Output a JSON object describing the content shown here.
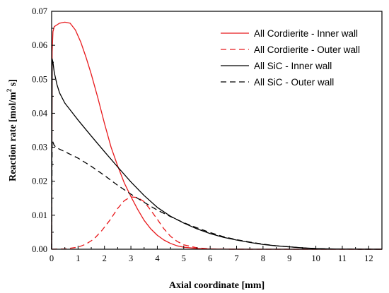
{
  "chart_data": {
    "type": "line",
    "title": "",
    "xlabel": "Axial coordinate [mm]",
    "ylabel_parts": {
      "main": "Reaction rate [mol/m",
      "sup": "2",
      "tail": " s]"
    },
    "xlim": [
      0,
      12.5
    ],
    "ylim": [
      0,
      0.07
    ],
    "xticks": [
      "0",
      "1",
      "2",
      "3",
      "4",
      "5",
      "6",
      "7",
      "8",
      "9",
      "10",
      "11",
      "12"
    ],
    "yticks": [
      "0.00",
      "0.01",
      "0.02",
      "0.03",
      "0.04",
      "0.05",
      "0.06",
      "0.07"
    ],
    "grid": false,
    "legend_position": "top-right",
    "series": [
      {
        "name": "All Cordierite - Inner wall",
        "color": "#e8191c",
        "dash": "solid",
        "x": [
          0,
          0.02,
          0.05,
          0.1,
          0.2,
          0.3,
          0.5,
          0.7,
          0.9,
          1.1,
          1.3,
          1.5,
          1.75,
          2.0,
          2.25,
          2.5,
          2.75,
          3.0,
          3.25,
          3.5,
          3.75,
          4.0,
          4.25,
          4.5,
          4.75,
          5.0,
          5.5,
          6.0,
          6.5,
          7.0,
          7.5,
          8.0,
          12.5
        ],
        "y": [
          0,
          0.058,
          0.064,
          0.0655,
          0.066,
          0.0665,
          0.0668,
          0.0665,
          0.0645,
          0.061,
          0.0565,
          0.0515,
          0.0445,
          0.037,
          0.03,
          0.0245,
          0.0195,
          0.0155,
          0.0118,
          0.0085,
          0.006,
          0.0041,
          0.0027,
          0.0017,
          0.001,
          0.0006,
          0.00022,
          8e-05,
          3e-05,
          1e-05,
          0,
          0,
          0
        ]
      },
      {
        "name": "All Cordierite - Outer wall",
        "color": "#e8191c",
        "dash": "dashed",
        "x": [
          0,
          0.5,
          1.0,
          1.3,
          1.6,
          1.9,
          2.2,
          2.5,
          2.75,
          3.0,
          3.25,
          3.5,
          3.75,
          4.0,
          4.25,
          4.5,
          4.75,
          5.0,
          5.5,
          6.0,
          6.5,
          7.0,
          12.5
        ],
        "y": [
          0,
          0.0001,
          0.0006,
          0.0015,
          0.003,
          0.0055,
          0.0085,
          0.012,
          0.0143,
          0.0154,
          0.0152,
          0.014,
          0.0115,
          0.0088,
          0.006,
          0.0038,
          0.0023,
          0.0013,
          0.0004,
          0.0001,
          3e-05,
          0,
          0
        ]
      },
      {
        "name": "All SiC - Inner wall",
        "color": "#000000",
        "dash": "solid",
        "x": [
          0,
          0.02,
          0.05,
          0.1,
          0.2,
          0.3,
          0.5,
          0.75,
          1.0,
          1.5,
          2.0,
          2.5,
          3.0,
          3.5,
          4.0,
          4.5,
          5.0,
          5.5,
          6.0,
          6.5,
          7.0,
          7.5,
          8.0,
          8.5,
          9.0,
          9.5,
          10.0,
          10.5,
          11.0,
          11.5,
          12.0,
          12.5
        ],
        "y": [
          0,
          0.056,
          0.055,
          0.052,
          0.0485,
          0.046,
          0.043,
          0.0405,
          0.038,
          0.0333,
          0.0287,
          0.0242,
          0.0198,
          0.0158,
          0.0123,
          0.0097,
          0.0077,
          0.006,
          0.0046,
          0.0035,
          0.0027,
          0.002,
          0.0014,
          0.001,
          0.0007,
          0.0004,
          0.0002,
          0.0001,
          5e-05,
          2e-05,
          1e-05,
          0
        ]
      },
      {
        "name": "All SiC - Outer wall",
        "color": "#000000",
        "dash": "dashed",
        "x": [
          0,
          0.02,
          0.05,
          0.1,
          0.2,
          0.5,
          1.0,
          1.5,
          2.0,
          2.5,
          3.0,
          3.5,
          4.0,
          4.5,
          5.0,
          5.5,
          6.0,
          6.5,
          7.0,
          7.5,
          8.0,
          8.5,
          9.0,
          9.5,
          10.0,
          10.5,
          11.0,
          11.5,
          12.0,
          12.5
        ],
        "y": [
          0,
          0.032,
          0.0315,
          0.0305,
          0.0298,
          0.0287,
          0.0268,
          0.0244,
          0.0217,
          0.0188,
          0.0162,
          0.0138,
          0.0115,
          0.0096,
          0.0078,
          0.0063,
          0.0049,
          0.0037,
          0.0028,
          0.0021,
          0.0015,
          0.001,
          0.0007,
          0.0004,
          0.0002,
          0.0001,
          5e-05,
          2e-05,
          1e-05,
          0
        ]
      }
    ]
  }
}
